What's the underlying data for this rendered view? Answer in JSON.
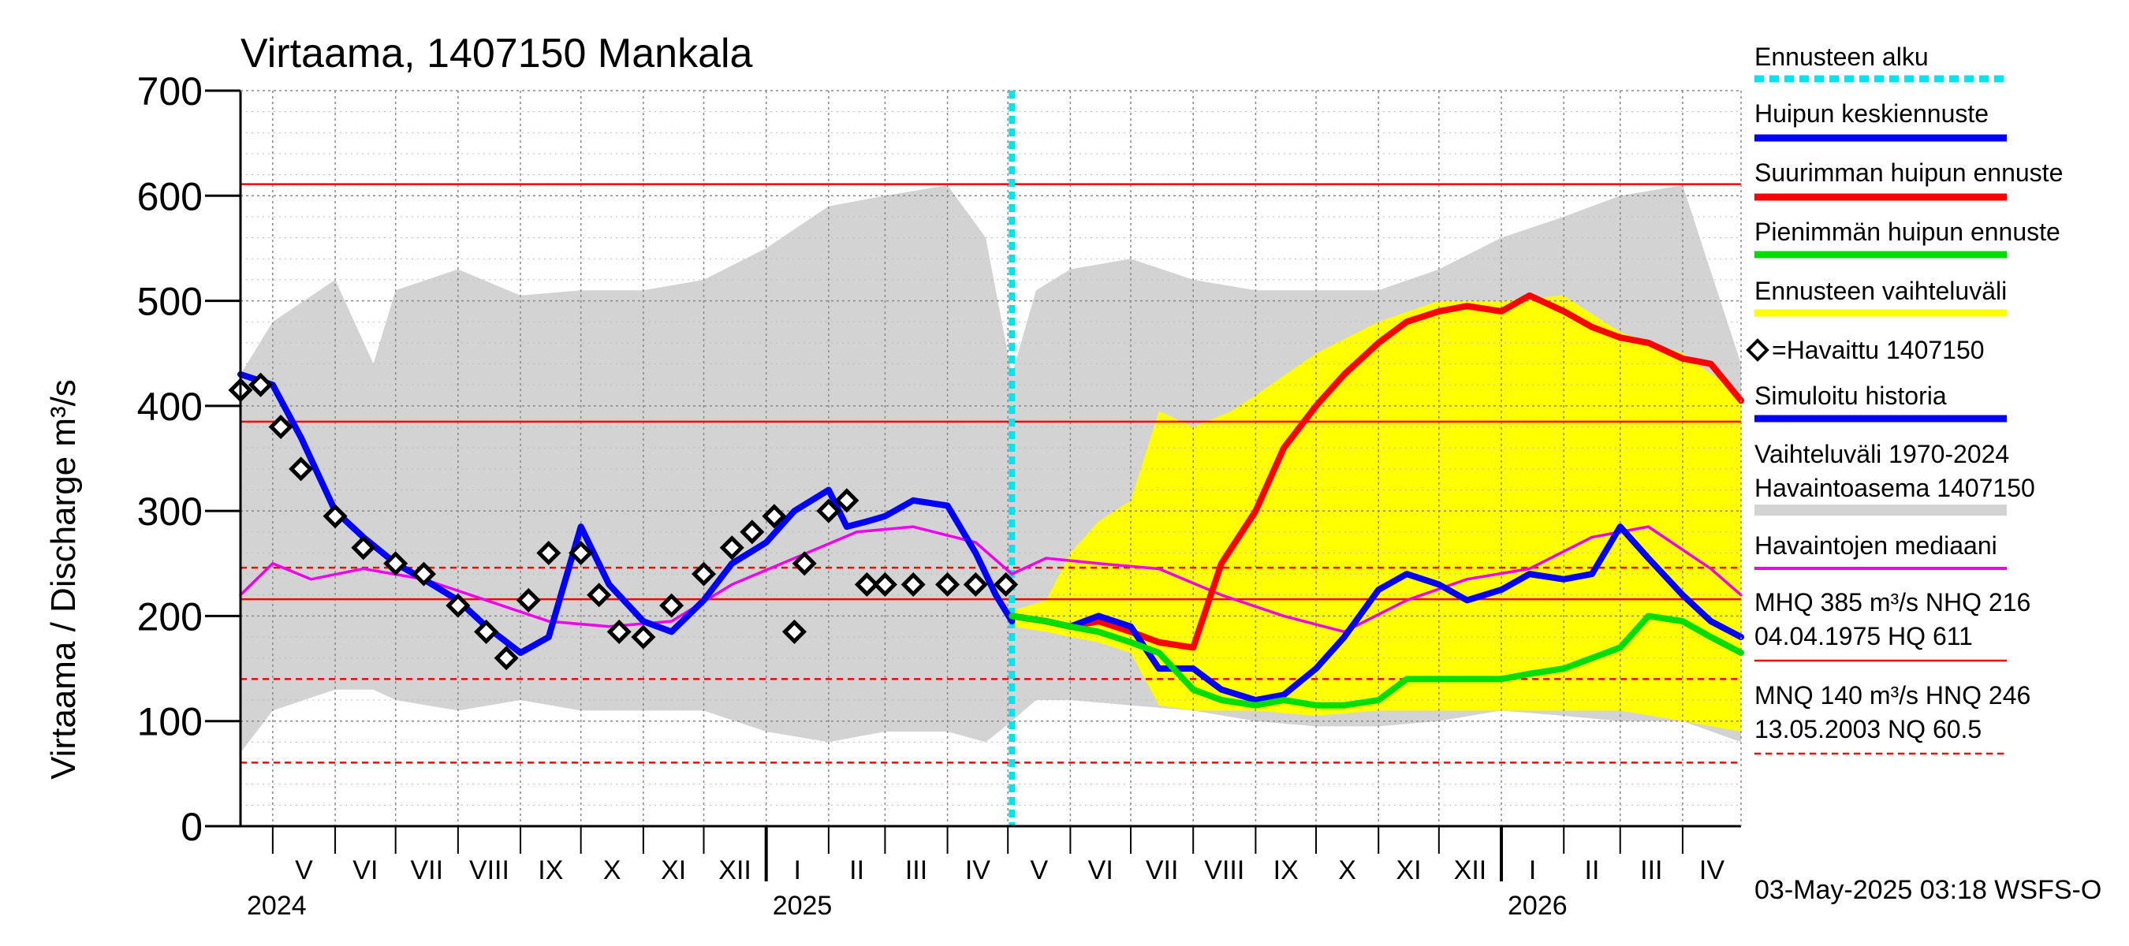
{
  "chart_data": {
    "type": "line",
    "title": "Virtaama, 1407150 Mankala",
    "ylabel": "Virtaama / Discharge   m³/s",
    "ylim": [
      0,
      700
    ],
    "yticks": [
      0,
      100,
      200,
      300,
      400,
      500,
      600,
      700
    ],
    "xlim": [
      "2024-04-15",
      "2026-04-30"
    ],
    "month_labels": [
      "V",
      "VI",
      "VII",
      "VIII",
      "IX",
      "X",
      "XI",
      "XII",
      "I",
      "II",
      "III",
      "IV",
      "V",
      "VI",
      "VII",
      "VIII",
      "IX",
      "X",
      "XI",
      "XII",
      "I",
      "II",
      "III",
      "IV"
    ],
    "year_labels": [
      {
        "label": "2024",
        "date": "2024-04-15"
      },
      {
        "label": "2025",
        "date": "2025-01-01"
      },
      {
        "label": "2026",
        "date": "2026-01-01"
      }
    ],
    "forecast_start": "2025-05-03",
    "reference_lines": [
      {
        "name": "HQ",
        "value": 611,
        "style": "solid"
      },
      {
        "name": "MHQ",
        "value": 385,
        "style": "solid"
      },
      {
        "name": "HNQ",
        "value": 246,
        "style": "dashed"
      },
      {
        "name": "NHQ",
        "value": 216,
        "style": "solid"
      },
      {
        "name": "MNQ",
        "value": 140,
        "style": "dashed"
      },
      {
        "name": "NQ",
        "value": 60.5,
        "style": "dashed"
      }
    ],
    "legend": [
      {
        "label": "Ennusteen alku",
        "color": "#00e5ee",
        "style": "dotted"
      },
      {
        "label": "Huipun keskiennuste",
        "color": "#0000ff",
        "style": "solid"
      },
      {
        "label": "Suurimman huipun ennuste",
        "color": "#ff0000",
        "style": "solid"
      },
      {
        "label": "Pienimmän huipun ennuste",
        "color": "#00dd00",
        "style": "solid"
      },
      {
        "label": "Ennusteen vaihteluväli",
        "color": "#ffff00",
        "style": "solid"
      },
      {
        "label": "=Havaittu 1407150",
        "color": "#000000",
        "style": "marker"
      },
      {
        "label": "Simuloitu historia",
        "color": "#0000ff",
        "style": "solid"
      },
      {
        "label": "Vaihteluväli 1970-2024\n Havaintoasema 1407150",
        "color": "#d3d3d3",
        "style": "band"
      },
      {
        "label": "Havaintojen mediaani",
        "color": "#ee00ee",
        "style": "solid"
      }
    ],
    "stats_text": [
      {
        "line1": "MHQ  385 m³/s NHQ  216",
        "line2": "04.04.1975 HQ  611",
        "color": "#ff0000",
        "style": "solid"
      },
      {
        "line1": "MNQ  140 m³/s HNQ  246",
        "line2": "13.05.2003 NQ 60.5",
        "color": "#ff0000",
        "style": "dashed"
      }
    ],
    "footer": "03-May-2025 03:18 WSFS-O",
    "series": [
      {
        "name": "Vaihteluväli 1970-2024",
        "type": "band",
        "color": "#d3d3d3",
        "x": [
          "2024-04-15",
          "2024-05-01",
          "2024-06-01",
          "2024-06-20",
          "2024-07-01",
          "2024-08-01",
          "2024-09-01",
          "2024-10-01",
          "2024-11-01",
          "2024-12-01",
          "2025-01-01",
          "2025-02-01",
          "2025-03-01",
          "2025-04-01",
          "2025-04-20",
          "2025-05-03",
          "2025-05-15",
          "2025-06-01",
          "2025-07-01",
          "2025-08-01",
          "2025-09-01",
          "2025-10-01",
          "2025-11-01",
          "2025-12-01",
          "2026-01-01",
          "2026-02-01",
          "2026-03-01",
          "2026-04-01",
          "2026-04-30"
        ],
        "upper": [
          430,
          480,
          520,
          440,
          510,
          530,
          505,
          510,
          510,
          520,
          550,
          590,
          600,
          610,
          560,
          430,
          510,
          530,
          540,
          520,
          510,
          510,
          510,
          530,
          560,
          580,
          600,
          610,
          440
        ],
        "lower": [
          70,
          110,
          130,
          130,
          120,
          110,
          120,
          110,
          110,
          110,
          90,
          80,
          90,
          90,
          80,
          100,
          120,
          120,
          115,
          110,
          100,
          95,
          95,
          100,
          110,
          105,
          100,
          100,
          80
        ]
      },
      {
        "name": "Ennusteen vaihteluväli",
        "type": "band",
        "color": "#ffff00",
        "x": [
          "2025-05-03",
          "2025-05-20",
          "2025-06-01",
          "2025-06-15",
          "2025-07-01",
          "2025-07-15",
          "2025-08-01",
          "2025-08-20",
          "2025-09-01",
          "2025-10-01",
          "2025-11-01",
          "2025-12-01",
          "2026-01-01",
          "2026-02-01",
          "2026-03-01",
          "2026-04-01",
          "2026-04-30"
        ],
        "upper": [
          205,
          215,
          260,
          290,
          310,
          395,
          380,
          395,
          410,
          450,
          480,
          500,
          500,
          505,
          470,
          450,
          410
        ],
        "lower": [
          190,
          185,
          180,
          175,
          165,
          115,
          110,
          110,
          110,
          105,
          110,
          110,
          110,
          110,
          110,
          100,
          90
        ]
      },
      {
        "name": "Havaintojen mediaani",
        "color": "#ee00ee",
        "x": [
          "2024-04-15",
          "2024-05-01",
          "2024-05-20",
          "2024-06-15",
          "2024-07-15",
          "2024-08-15",
          "2024-09-15",
          "2024-10-15",
          "2024-11-15",
          "2024-12-15",
          "2025-01-15",
          "2025-02-15",
          "2025-03-15",
          "2025-04-15",
          "2025-05-03",
          "2025-05-20",
          "2025-06-15",
          "2025-07-15",
          "2025-08-15",
          "2025-09-15",
          "2025-10-15",
          "2025-11-15",
          "2025-12-15",
          "2026-01-15",
          "2026-02-15",
          "2026-03-15",
          "2026-04-15",
          "2026-04-30"
        ],
        "y": [
          220,
          250,
          235,
          245,
          235,
          215,
          195,
          190,
          195,
          230,
          255,
          280,
          285,
          270,
          240,
          255,
          250,
          245,
          220,
          200,
          185,
          215,
          235,
          245,
          275,
          285,
          245,
          220
        ]
      },
      {
        "name": "Simuloitu historia",
        "color": "#0000ff",
        "x": [
          "2024-04-15",
          "2024-05-01",
          "2024-05-15",
          "2024-06-01",
          "2024-06-15",
          "2024-07-01",
          "2024-07-15",
          "2024-08-01",
          "2024-08-15",
          "2024-09-01",
          "2024-09-15",
          "2024-10-01",
          "2024-10-15",
          "2024-11-01",
          "2024-11-15",
          "2024-12-01",
          "2024-12-15",
          "2025-01-01",
          "2025-01-15",
          "2025-02-01",
          "2025-02-10",
          "2025-02-20",
          "2025-03-01",
          "2025-03-15",
          "2025-04-01",
          "2025-04-15",
          "2025-04-25",
          "2025-05-03"
        ],
        "y": [
          430,
          420,
          370,
          300,
          275,
          250,
          235,
          215,
          190,
          165,
          180,
          285,
          230,
          195,
          185,
          215,
          250,
          270,
          300,
          320,
          285,
          290,
          295,
          310,
          305,
          260,
          220,
          195
        ]
      },
      {
        "name": "Havaittu 1407150",
        "color": "#000000",
        "marker": "diamond",
        "x": [
          "2024-04-15",
          "2024-04-25",
          "2024-05-05",
          "2024-05-15",
          "2024-06-01",
          "2024-06-15",
          "2024-07-01",
          "2024-07-15",
          "2024-08-01",
          "2024-08-15",
          "2024-08-25",
          "2024-09-05",
          "2024-09-15",
          "2024-10-01",
          "2024-10-10",
          "2024-10-20",
          "2024-11-01",
          "2024-11-15",
          "2024-12-01",
          "2024-12-15",
          "2024-12-25",
          "2025-01-05",
          "2025-01-15",
          "2025-01-20",
          "2025-02-01",
          "2025-02-10",
          "2025-02-20",
          "2025-03-01",
          "2025-03-15",
          "2025-04-01",
          "2025-04-15",
          "2025-04-30"
        ],
        "y": [
          415,
          420,
          380,
          340,
          295,
          265,
          250,
          240,
          210,
          185,
          160,
          215,
          260,
          260,
          220,
          185,
          180,
          210,
          240,
          265,
          280,
          295,
          185,
          250,
          300,
          310,
          230,
          230,
          230,
          230,
          230,
          230
        ]
      },
      {
        "name": "Suurimman huipun ennuste",
        "color": "#ff0000",
        "x": [
          "2025-05-03",
          "2025-05-20",
          "2025-06-01",
          "2025-06-15",
          "2025-07-01",
          "2025-07-15",
          "2025-08-01",
          "2025-08-15",
          "2025-09-01",
          "2025-09-15",
          "2025-10-01",
          "2025-10-15",
          "2025-11-01",
          "2025-11-15",
          "2025-12-01",
          "2025-12-15",
          "2026-01-01",
          "2026-01-15",
          "2026-02-01",
          "2026-02-15",
          "2026-03-01",
          "2026-03-15",
          "2026-04-01",
          "2026-04-15",
          "2026-04-30"
        ],
        "y": [
          200,
          195,
          190,
          195,
          185,
          175,
          170,
          250,
          300,
          360,
          400,
          430,
          460,
          480,
          490,
          495,
          490,
          505,
          490,
          475,
          465,
          460,
          445,
          440,
          405
        ]
      },
      {
        "name": "Huipun keskiennuste",
        "color": "#0000ff",
        "x": [
          "2025-05-03",
          "2025-05-20",
          "2025-06-01",
          "2025-06-15",
          "2025-07-01",
          "2025-07-15",
          "2025-08-01",
          "2025-08-15",
          "2025-09-01",
          "2025-09-15",
          "2025-10-01",
          "2025-10-15",
          "2025-11-01",
          "2025-11-15",
          "2025-12-01",
          "2025-12-15",
          "2026-01-01",
          "2026-01-15",
          "2026-02-01",
          "2026-02-15",
          "2026-03-01",
          "2026-03-15",
          "2026-04-01",
          "2026-04-15",
          "2026-04-30"
        ],
        "y": [
          200,
          195,
          190,
          200,
          190,
          150,
          150,
          130,
          120,
          125,
          150,
          180,
          225,
          240,
          230,
          215,
          225,
          240,
          235,
          240,
          285,
          255,
          220,
          195,
          180
        ]
      },
      {
        "name": "Pienimmän huipun ennuste",
        "color": "#00dd00",
        "x": [
          "2025-05-03",
          "2025-05-20",
          "2025-06-01",
          "2025-06-15",
          "2025-07-01",
          "2025-07-15",
          "2025-08-01",
          "2025-08-15",
          "2025-09-01",
          "2025-09-15",
          "2025-10-01",
          "2025-10-15",
          "2025-11-01",
          "2025-11-15",
          "2025-12-01",
          "2025-12-15",
          "2026-01-01",
          "2026-01-15",
          "2026-02-01",
          "2026-02-15",
          "2026-03-01",
          "2026-03-15",
          "2026-04-01",
          "2026-04-15",
          "2026-04-30"
        ],
        "y": [
          200,
          195,
          190,
          185,
          175,
          165,
          130,
          120,
          115,
          120,
          115,
          115,
          120,
          140,
          140,
          140,
          140,
          145,
          150,
          160,
          170,
          200,
          195,
          180,
          165
        ]
      }
    ]
  }
}
